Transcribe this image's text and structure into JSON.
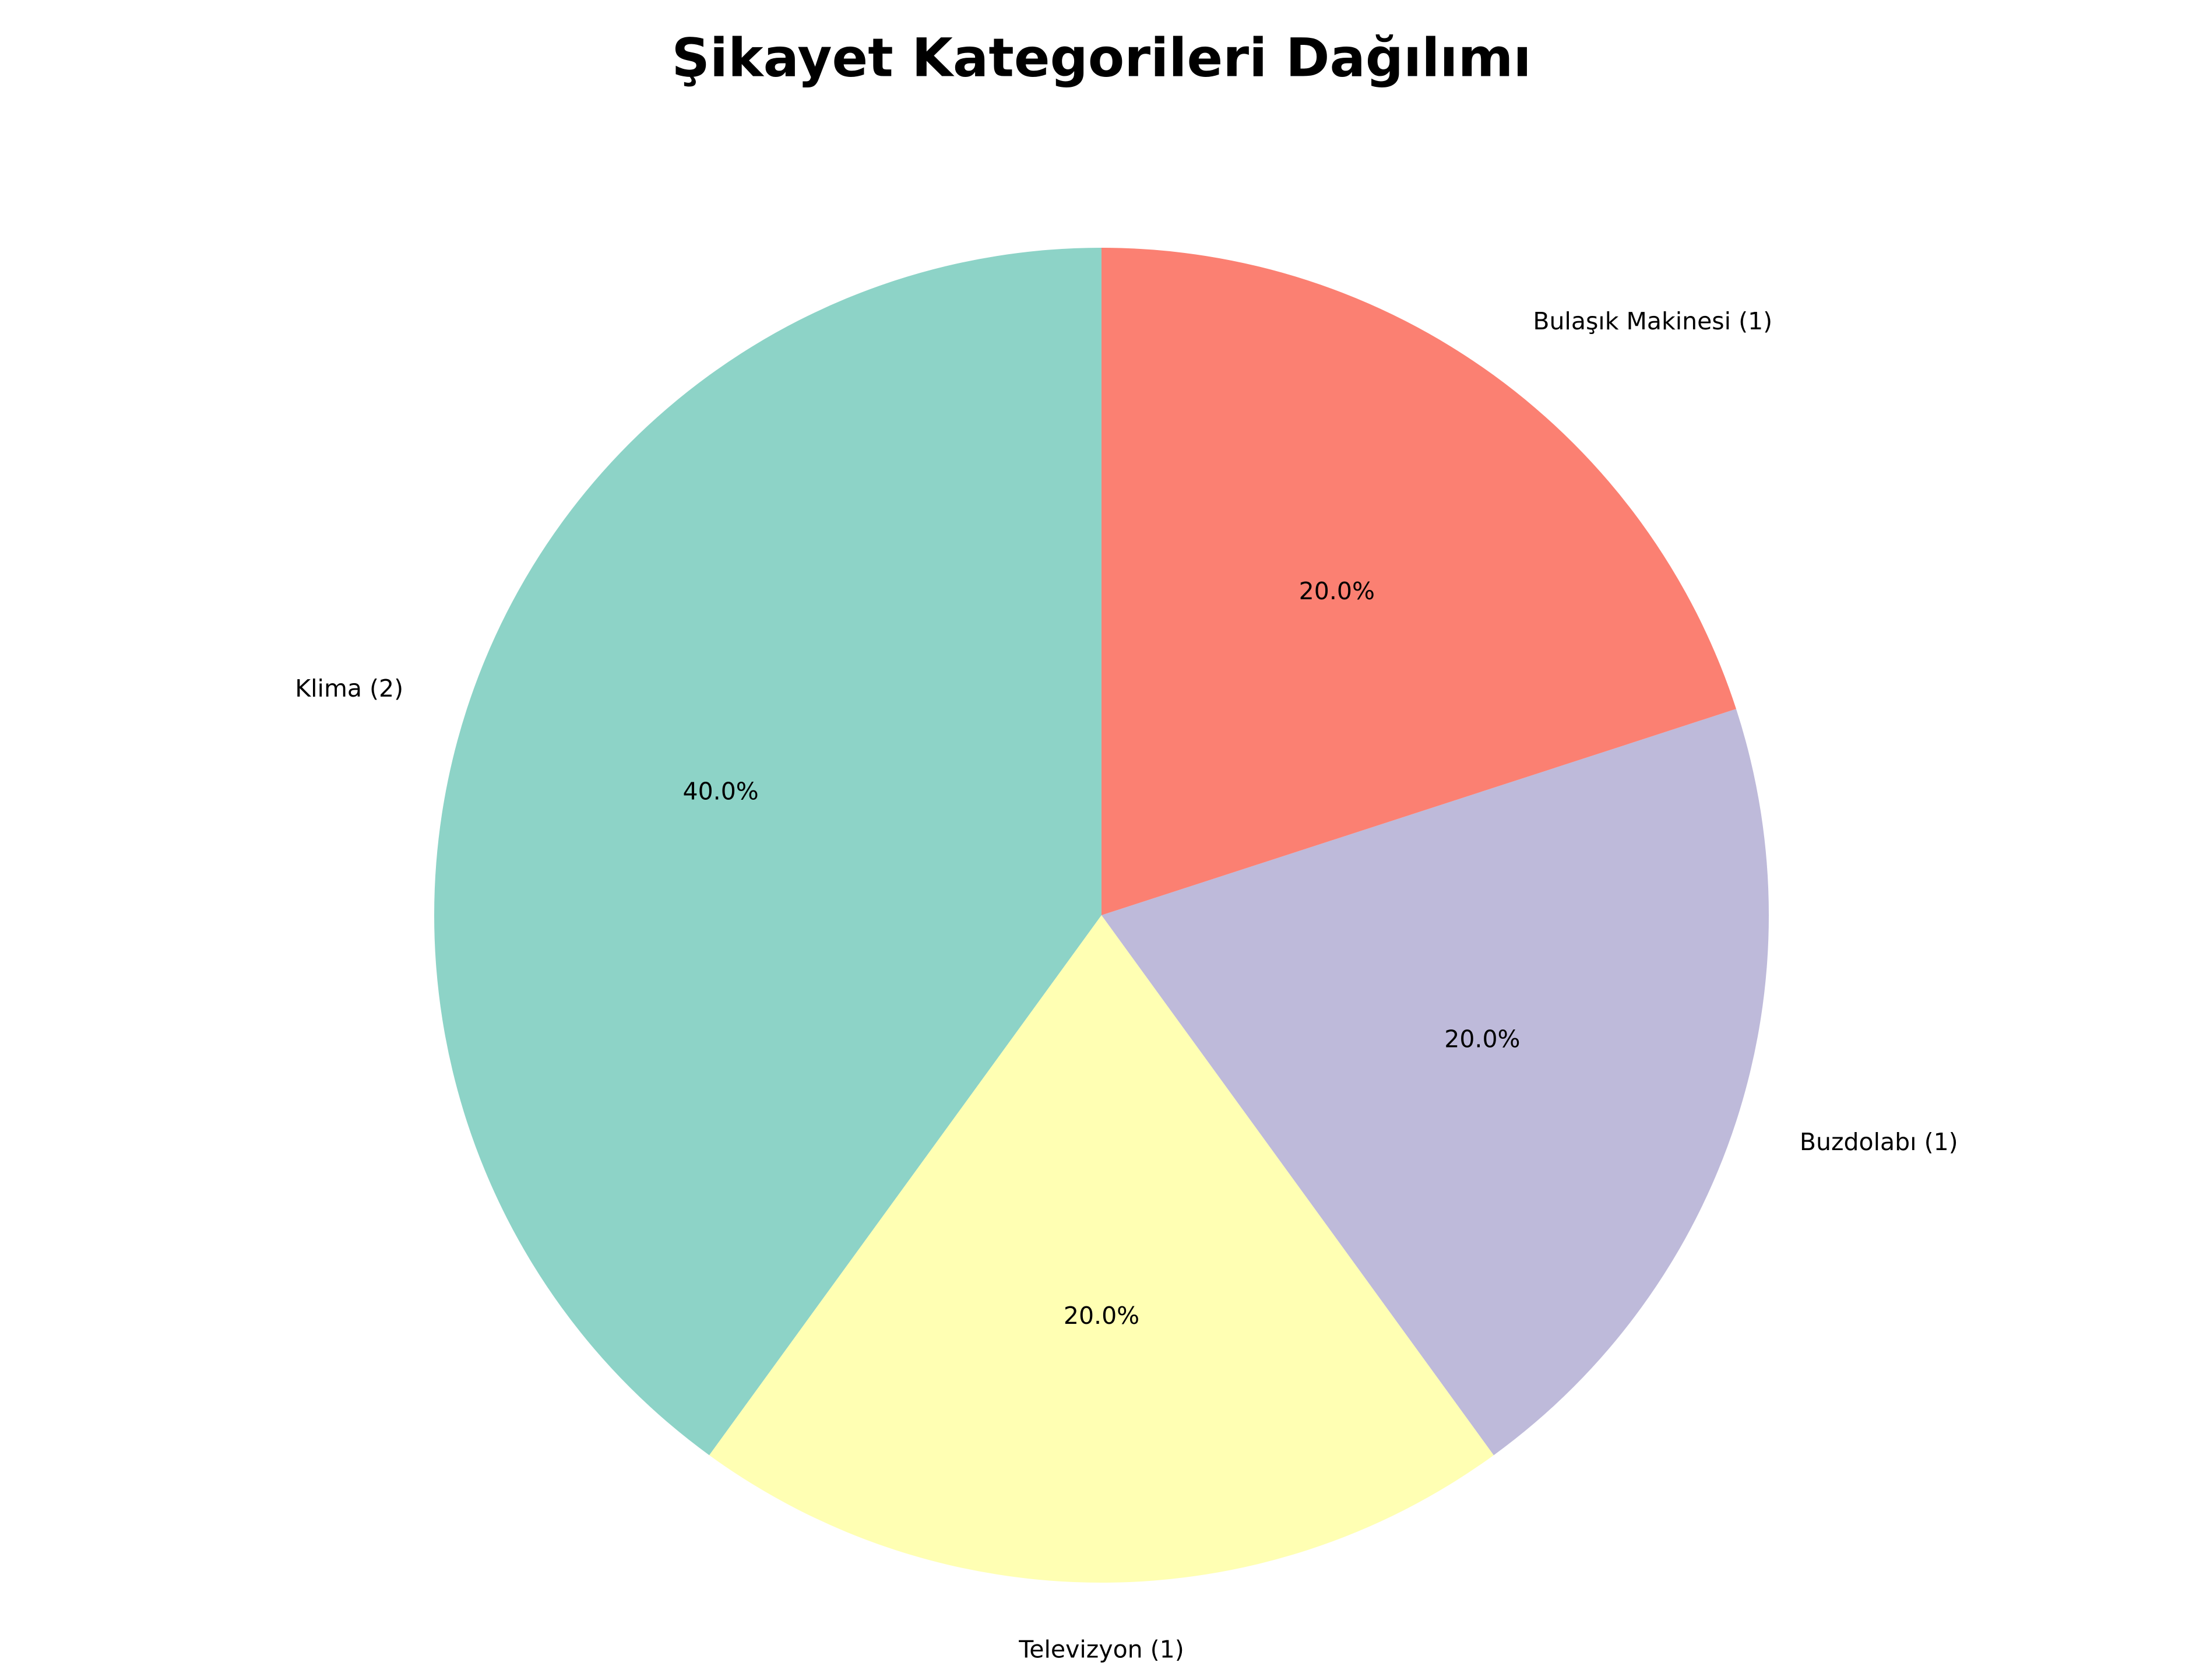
{
  "chart_data": {
    "type": "pie",
    "title": "Şikayet Kategorileri Dağılımı",
    "start_angle_deg": 90,
    "direction": "counterclockwise",
    "slices": [
      {
        "label": "Klima (2)",
        "value": 2,
        "percent_label": "40.0%",
        "color": "#8dd3c7"
      },
      {
        "label": "Televizyon (1)",
        "value": 1,
        "percent_label": "20.0%",
        "color": "#ffffb3"
      },
      {
        "label": "Buzdolabı (1)",
        "value": 1,
        "percent_label": "20.0%",
        "color": "#bebada"
      },
      {
        "label": "Bulaşık Makinesi (1)",
        "value": 1,
        "percent_label": "20.0%",
        "color": "#fb8072"
      }
    ]
  }
}
